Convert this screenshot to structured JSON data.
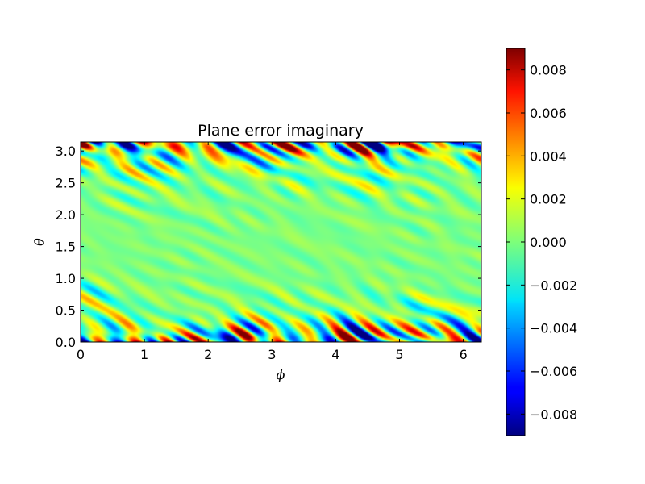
{
  "chart_data": {
    "type": "heatmap",
    "title": "Plane error imaginary",
    "xlabel": "ϕ",
    "ylabel": "θ",
    "xlim": [
      0,
      6.2832
    ],
    "ylim": [
      0,
      3.1416
    ],
    "x_ticks": [
      "0",
      "1",
      "2",
      "3",
      "4",
      "5",
      "6"
    ],
    "y_ticks": [
      "0.0",
      "0.5",
      "1.0",
      "1.5",
      "2.0",
      "2.5",
      "3.0"
    ],
    "colormap": "jet",
    "colorbar": {
      "range": [
        -0.009,
        0.009
      ],
      "ticks": [
        "−0.008",
        "−0.006",
        "−0.004",
        "−0.002",
        "0.000",
        "0.002",
        "0.004",
        "0.006",
        "0.008"
      ],
      "tick_values": [
        -0.008,
        -0.006,
        -0.004,
        -0.002,
        0.0,
        0.002,
        0.004,
        0.006,
        0.008
      ]
    },
    "field_description": "near zero in the middle band (theta ≈ 0.8–2.3); strong oscillating positive/negative errors near theta ≈ 0 and theta ≈ π, amplitude up to about ±0.008",
    "grid": false
  }
}
